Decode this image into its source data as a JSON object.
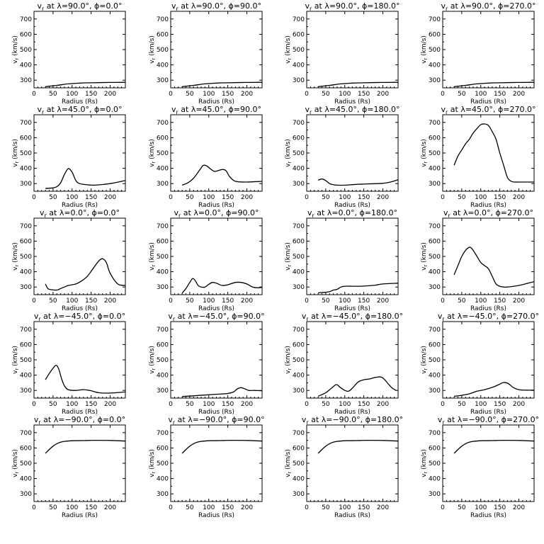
{
  "chart_data": [
    {
      "type": "line",
      "title": "v_r at λ=90.0°, ϕ=0.0°",
      "xlabel": "Radius (Rs)",
      "ylabel": "v_r (km/s)",
      "xlim": [
        0,
        240
      ],
      "ylim": [
        250,
        750
      ],
      "xticks": [
        0,
        50,
        100,
        150,
        200
      ],
      "yticks": [
        300,
        400,
        500,
        600,
        700
      ],
      "series": [
        {
          "x": [
            30,
            60,
            90,
            120,
            150,
            200,
            240
          ],
          "y": [
            258,
            266,
            276,
            281,
            283,
            285,
            286
          ]
        }
      ]
    },
    {
      "type": "line",
      "title": "v_r at λ=90.0°, ϕ=90.0°",
      "xlabel": "Radius (Rs)",
      "ylabel": "v_r (km/s)",
      "xlim": [
        0,
        240
      ],
      "ylim": [
        250,
        750
      ],
      "xticks": [
        0,
        50,
        100,
        150,
        200
      ],
      "yticks": [
        300,
        400,
        500,
        600,
        700
      ],
      "series": [
        {
          "x": [
            30,
            60,
            90,
            120,
            150,
            200,
            240
          ],
          "y": [
            258,
            266,
            276,
            281,
            283,
            285,
            286
          ]
        }
      ]
    },
    {
      "type": "line",
      "title": "v_r at λ=90.0°, ϕ=180.0°",
      "xlabel": "Radius (Rs)",
      "ylabel": "v_r (km/s)",
      "xlim": [
        0,
        240
      ],
      "ylim": [
        250,
        750
      ],
      "xticks": [
        0,
        50,
        100,
        150,
        200
      ],
      "yticks": [
        300,
        400,
        500,
        600,
        700
      ],
      "series": [
        {
          "x": [
            30,
            60,
            90,
            120,
            150,
            200,
            240
          ],
          "y": [
            258,
            266,
            276,
            281,
            283,
            285,
            286
          ]
        }
      ]
    },
    {
      "type": "line",
      "title": "v_r at λ=90.0°, ϕ=270.0°",
      "xlabel": "Radius (Rs)",
      "ylabel": "v_r (km/s)",
      "xlim": [
        0,
        240
      ],
      "ylim": [
        250,
        750
      ],
      "xticks": [
        0,
        50,
        100,
        150,
        200
      ],
      "yticks": [
        300,
        400,
        500,
        600,
        700
      ],
      "series": [
        {
          "x": [
            30,
            60,
            90,
            120,
            150,
            200,
            240
          ],
          "y": [
            258,
            266,
            276,
            281,
            283,
            285,
            286
          ]
        }
      ]
    },
    {
      "type": "line",
      "title": "v_r at λ=45.0°, ϕ=0.0°",
      "xlabel": "Radius (Rs)",
      "ylabel": "v_r (km/s)",
      "xlim": [
        0,
        240
      ],
      "ylim": [
        250,
        750
      ],
      "xticks": [
        0,
        50,
        100,
        150,
        200
      ],
      "yticks": [
        300,
        400,
        500,
        600,
        700
      ],
      "series": [
        {
          "x": [
            30,
            50,
            60,
            70,
            80,
            90,
            100,
            110,
            120,
            140,
            160,
            200,
            240
          ],
          "y": [
            268,
            272,
            280,
            305,
            360,
            398,
            375,
            320,
            300,
            292,
            290,
            300,
            320
          ]
        }
      ]
    },
    {
      "type": "line",
      "title": "v_r at λ=45.0°, ϕ=90.0°",
      "xlabel": "Radius (Rs)",
      "ylabel": "v_r (km/s)",
      "xlim": [
        0,
        240
      ],
      "ylim": [
        250,
        750
      ],
      "xticks": [
        0,
        50,
        100,
        150,
        200
      ],
      "yticks": [
        300,
        400,
        500,
        600,
        700
      ],
      "series": [
        {
          "x": [
            30,
            45,
            60,
            75,
            85,
            95,
            105,
            115,
            125,
            135,
            145,
            155,
            170,
            200,
            240
          ],
          "y": [
            290,
            305,
            335,
            385,
            418,
            415,
            395,
            380,
            385,
            392,
            385,
            345,
            315,
            310,
            315
          ]
        }
      ]
    },
    {
      "type": "line",
      "title": "v_r at λ=45.0°, ϕ=180.0°",
      "xlabel": "Radius (Rs)",
      "ylabel": "v_r (km/s)",
      "xlim": [
        0,
        240
      ],
      "ylim": [
        250,
        750
      ],
      "xticks": [
        0,
        50,
        100,
        150,
        200
      ],
      "yticks": [
        300,
        400,
        500,
        600,
        700
      ],
      "series": [
        {
          "x": [
            30,
            40,
            50,
            60,
            70,
            80,
            100,
            130,
            160,
            200,
            220,
            240
          ],
          "y": [
            322,
            330,
            320,
            300,
            293,
            290,
            290,
            295,
            298,
            302,
            310,
            325
          ]
        }
      ]
    },
    {
      "type": "line",
      "title": "v_r at λ=45.0°, ϕ=270.0°",
      "xlabel": "Radius (Rs)",
      "ylabel": "v_r (km/s)",
      "xlim": [
        0,
        240
      ],
      "ylim": [
        250,
        750
      ],
      "xticks": [
        0,
        50,
        100,
        150,
        200
      ],
      "yticks": [
        300,
        400,
        500,
        600,
        700
      ],
      "series": [
        {
          "x": [
            30,
            40,
            50,
            60,
            70,
            80,
            90,
            100,
            110,
            120,
            130,
            140,
            150,
            160,
            170,
            180,
            190,
            200,
            240
          ],
          "y": [
            420,
            480,
            520,
            560,
            590,
            630,
            660,
            685,
            690,
            680,
            640,
            590,
            500,
            420,
            340,
            315,
            310,
            310,
            310
          ]
        }
      ]
    },
    {
      "type": "line",
      "title": "v_r at λ=0.0°, ϕ=0.0°",
      "xlabel": "Radius (Rs)",
      "ylabel": "v_r (km/s)",
      "xlim": [
        0,
        240
      ],
      "ylim": [
        250,
        750
      ],
      "xticks": [
        0,
        50,
        100,
        150,
        200
      ],
      "yticks": [
        300,
        400,
        500,
        600,
        700
      ],
      "series": [
        {
          "x": [
            30,
            35,
            40,
            60,
            70,
            80,
            90,
            110,
            125,
            140,
            155,
            170,
            180,
            190,
            200,
            220,
            240
          ],
          "y": [
            320,
            295,
            285,
            280,
            290,
            300,
            310,
            320,
            340,
            370,
            420,
            470,
            485,
            460,
            390,
            320,
            310
          ]
        }
      ]
    },
    {
      "type": "line",
      "title": "v_r at λ=0.0°, ϕ=90.0°",
      "xlabel": "Radius (Rs)",
      "ylabel": "v_r (km/s)",
      "xlim": [
        0,
        240
      ],
      "ylim": [
        250,
        750
      ],
      "xticks": [
        0,
        50,
        100,
        150,
        200
      ],
      "yticks": [
        300,
        400,
        500,
        600,
        700
      ],
      "series": [
        {
          "x": [
            30,
            40,
            50,
            58,
            65,
            72,
            80,
            90,
            100,
            110,
            120,
            135,
            150,
            170,
            185,
            200,
            215,
            230,
            240
          ],
          "y": [
            260,
            290,
            330,
            355,
            340,
            310,
            300,
            300,
            318,
            330,
            325,
            310,
            315,
            330,
            330,
            320,
            300,
            295,
            298
          ]
        }
      ]
    },
    {
      "type": "line",
      "title": "v_r at λ=0.0°, ϕ=180.0°",
      "xlabel": "Radius (Rs)",
      "ylabel": "v_r (km/s)",
      "xlim": [
        0,
        240
      ],
      "ylim": [
        250,
        750
      ],
      "xticks": [
        0,
        50,
        100,
        150,
        200
      ],
      "yticks": [
        300,
        400,
        500,
        600,
        700
      ],
      "series": [
        {
          "x": [
            30,
            45,
            60,
            70,
            80,
            90,
            100,
            120,
            140,
            160,
            180,
            200,
            240
          ],
          "y": [
            262,
            265,
            270,
            280,
            285,
            300,
            305,
            305,
            305,
            308,
            312,
            320,
            325
          ]
        }
      ]
    },
    {
      "type": "line",
      "title": "v_r at λ=0.0°, ϕ=270.0°",
      "xlabel": "Radius (Rs)",
      "ylabel": "v_r (km/s)",
      "xlim": [
        0,
        240
      ],
      "ylim": [
        250,
        750
      ],
      "xticks": [
        0,
        50,
        100,
        150,
        200
      ],
      "yticks": [
        300,
        400,
        500,
        600,
        700
      ],
      "series": [
        {
          "x": [
            30,
            40,
            50,
            60,
            70,
            75,
            80,
            90,
            100,
            110,
            120,
            130,
            140,
            150,
            160,
            170,
            200,
            240
          ],
          "y": [
            380,
            440,
            500,
            540,
            560,
            555,
            540,
            500,
            460,
            440,
            420,
            370,
            320,
            305,
            300,
            300,
            310,
            335
          ]
        }
      ]
    },
    {
      "type": "line",
      "title": "v_r at λ=−45.0°, ϕ=0.0°",
      "xlabel": "Radius (Rs)",
      "ylabel": "v_r (km/s)",
      "xlim": [
        0,
        240
      ],
      "ylim": [
        250,
        750
      ],
      "xticks": [
        0,
        50,
        100,
        150,
        200
      ],
      "yticks": [
        300,
        400,
        500,
        600,
        700
      ],
      "series": [
        {
          "x": [
            30,
            40,
            50,
            58,
            65,
            72,
            80,
            90,
            110,
            130,
            150,
            170,
            200,
            240
          ],
          "y": [
            370,
            410,
            445,
            465,
            440,
            380,
            330,
            305,
            300,
            305,
            298,
            285,
            283,
            290
          ]
        }
      ]
    },
    {
      "type": "line",
      "title": "v_r at λ=−45.0°, ϕ=90.0°",
      "xlabel": "Radius (Rs)",
      "ylabel": "v_r (km/s)",
      "xlim": [
        0,
        240
      ],
      "ylim": [
        250,
        750
      ],
      "xticks": [
        0,
        50,
        100,
        150,
        200
      ],
      "yticks": [
        300,
        400,
        500,
        600,
        700
      ],
      "series": [
        {
          "x": [
            30,
            60,
            90,
            120,
            150,
            165,
            175,
            185,
            195,
            205,
            220,
            240
          ],
          "y": [
            260,
            265,
            270,
            275,
            280,
            290,
            310,
            318,
            310,
            300,
            300,
            298
          ]
        }
      ]
    },
    {
      "type": "line",
      "title": "v_r at λ=−45.0°, ϕ=180.0°",
      "xlabel": "Radius (Rs)",
      "ylabel": "v_r (km/s)",
      "xlim": [
        0,
        240
      ],
      "ylim": [
        250,
        750
      ],
      "xticks": [
        0,
        50,
        100,
        150,
        200
      ],
      "yticks": [
        300,
        400,
        500,
        600,
        700
      ],
      "series": [
        {
          "x": [
            30,
            50,
            65,
            78,
            88,
            100,
            110,
            120,
            135,
            150,
            165,
            180,
            195,
            205,
            215,
            225,
            235
          ],
          "y": [
            262,
            285,
            315,
            338,
            320,
            300,
            295,
            315,
            355,
            370,
            375,
            385,
            388,
            370,
            340,
            315,
            300
          ]
        }
      ]
    },
    {
      "type": "line",
      "title": "v_r at λ=−45.0°, ϕ=270.0°",
      "xlabel": "Radius (Rs)",
      "ylabel": "v_r (km/s)",
      "xlim": [
        0,
        240
      ],
      "ylim": [
        250,
        750
      ],
      "xticks": [
        0,
        50,
        100,
        150,
        200
      ],
      "yticks": [
        300,
        400,
        500,
        600,
        700
      ],
      "series": [
        {
          "x": [
            30,
            50,
            70,
            90,
            110,
            130,
            145,
            160,
            172,
            185,
            200,
            220,
            240
          ],
          "y": [
            262,
            268,
            278,
            295,
            305,
            320,
            335,
            352,
            345,
            320,
            305,
            302,
            302
          ]
        }
      ]
    },
    {
      "type": "line",
      "title": "v_r at λ=−90.0°, ϕ=0.0°",
      "xlabel": "Radius (Rs)",
      "ylabel": "v_r (km/s)",
      "xlim": [
        0,
        240
      ],
      "ylim": [
        250,
        750
      ],
      "xticks": [
        0,
        50,
        100,
        150,
        200
      ],
      "yticks": [
        300,
        400,
        500,
        600,
        700
      ],
      "series": [
        {
          "x": [
            30,
            40,
            50,
            60,
            70,
            80,
            100,
            130,
            160,
            200,
            240
          ],
          "y": [
            565,
            590,
            612,
            628,
            638,
            643,
            647,
            648,
            650,
            649,
            645
          ]
        }
      ]
    },
    {
      "type": "line",
      "title": "v_r at λ=−90.0°, ϕ=90.0°",
      "xlabel": "Radius (Rs)",
      "ylabel": "v_r (km/s)",
      "xlim": [
        0,
        240
      ],
      "ylim": [
        250,
        750
      ],
      "xticks": [
        0,
        50,
        100,
        150,
        200
      ],
      "yticks": [
        300,
        400,
        500,
        600,
        700
      ],
      "series": [
        {
          "x": [
            30,
            40,
            50,
            60,
            70,
            80,
            100,
            130,
            160,
            200,
            240
          ],
          "y": [
            565,
            590,
            612,
            628,
            638,
            643,
            647,
            648,
            650,
            649,
            645
          ]
        }
      ]
    },
    {
      "type": "line",
      "title": "v_r at λ=−90.0°, ϕ=180.0°",
      "xlabel": "Radius (Rs)",
      "ylabel": "v_r (km/s)",
      "xlim": [
        0,
        240
      ],
      "ylim": [
        250,
        750
      ],
      "xticks": [
        0,
        50,
        100,
        150,
        200
      ],
      "yticks": [
        300,
        400,
        500,
        600,
        700
      ],
      "series": [
        {
          "x": [
            30,
            40,
            50,
            60,
            70,
            80,
            100,
            130,
            160,
            200,
            240
          ],
          "y": [
            565,
            590,
            612,
            628,
            638,
            643,
            647,
            648,
            650,
            649,
            645
          ]
        }
      ]
    },
    {
      "type": "line",
      "title": "v_r at λ=−90.0°, ϕ=270.0°",
      "xlabel": "Radius (Rs)",
      "ylabel": "v_r (km/s)",
      "xlim": [
        0,
        240
      ],
      "ylim": [
        250,
        750
      ],
      "xticks": [
        0,
        50,
        100,
        150,
        200
      ],
      "yticks": [
        300,
        400,
        500,
        600,
        700
      ],
      "series": [
        {
          "x": [
            30,
            40,
            50,
            60,
            70,
            80,
            100,
            130,
            160,
            200,
            240
          ],
          "y": [
            565,
            590,
            612,
            628,
            638,
            643,
            647,
            648,
            650,
            649,
            645
          ]
        }
      ]
    }
  ]
}
